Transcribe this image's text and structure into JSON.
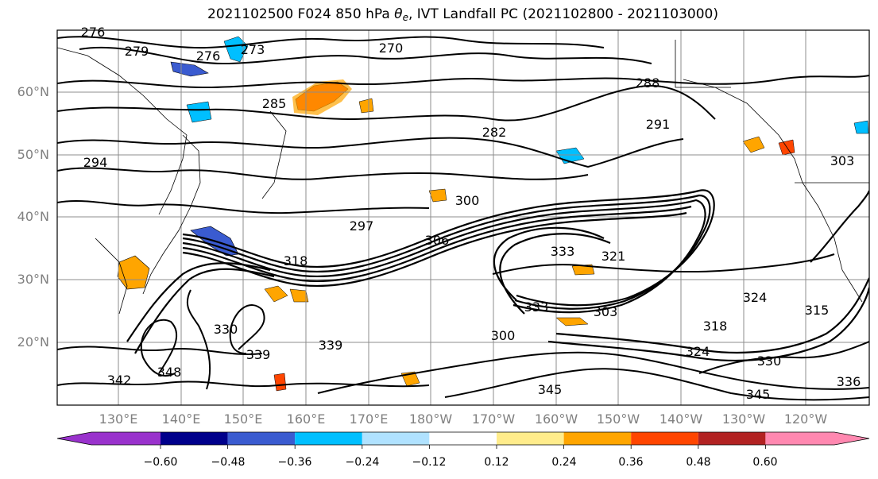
{
  "title": {
    "prefix": "2021102500 F024 850 hPa ",
    "theta": "θ",
    "theta_sub": "e",
    "suffix": ", IVT Landfall PC (2021102800 - 2021103000)"
  },
  "lat_labels": [
    "60°N",
    "50°N",
    "40°N",
    "30°N",
    "20°N"
  ],
  "lon_labels": [
    "130°E",
    "140°E",
    "150°E",
    "160°E",
    "170°E",
    "180°W",
    "170°W",
    "160°W",
    "150°W",
    "140°W",
    "130°W",
    "120°W"
  ],
  "colorbar": {
    "colors": [
      "#9932cc",
      "#00008b",
      "#3a5bd0",
      "#00bfff",
      "#b0e2ff",
      "#ffffff",
      "#ffec8b",
      "#ffa500",
      "#ff4500",
      "#b22222",
      "#ff88b0"
    ],
    "tick_labels": [
      "−0.60",
      "−0.48",
      "−0.36",
      "−0.24",
      "−0.12",
      "0.12",
      "0.24",
      "0.36",
      "0.48",
      "0.60"
    ]
  },
  "contour_labels": [
    {
      "text": "276"
    },
    {
      "text": "279"
    },
    {
      "text": "276"
    },
    {
      "text": "273"
    },
    {
      "text": "270"
    },
    {
      "text": "285"
    },
    {
      "text": "288"
    },
    {
      "text": "282"
    },
    {
      "text": "291"
    },
    {
      "text": "294"
    },
    {
      "text": "303"
    },
    {
      "text": "300"
    },
    {
      "text": "297"
    },
    {
      "text": "306"
    },
    {
      "text": "318"
    },
    {
      "text": "333"
    },
    {
      "text": "321"
    },
    {
      "text": "333"
    },
    {
      "text": "303"
    },
    {
      "text": "300"
    },
    {
      "text": "324"
    },
    {
      "text": "315"
    },
    {
      "text": "318"
    },
    {
      "text": "324"
    },
    {
      "text": "330"
    },
    {
      "text": "348"
    },
    {
      "text": "339"
    },
    {
      "text": "345"
    },
    {
      "text": "345"
    },
    {
      "text": "342"
    },
    {
      "text": "339"
    },
    {
      "text": "336"
    },
    {
      "text": "330"
    }
  ]
}
